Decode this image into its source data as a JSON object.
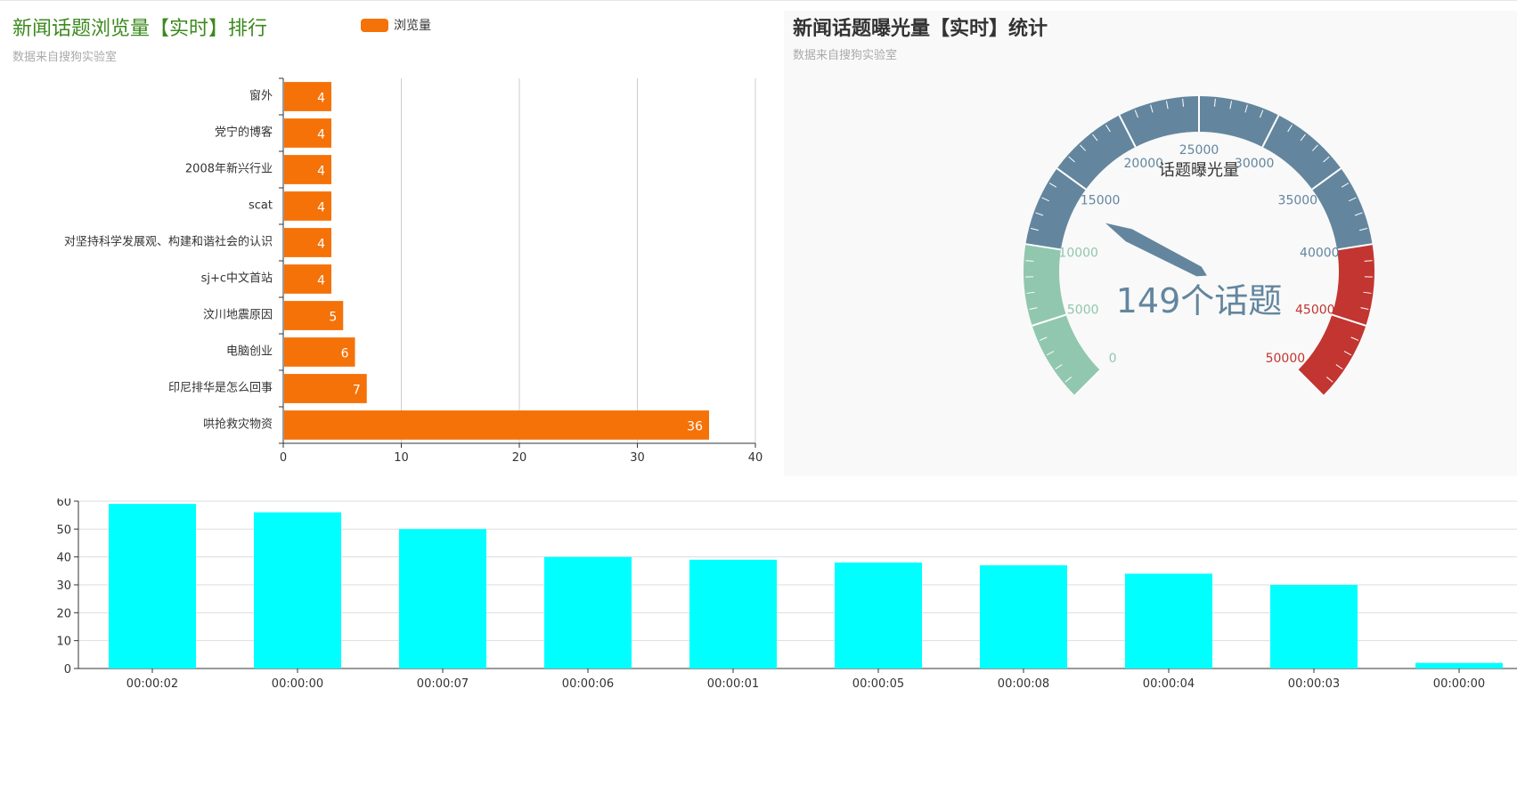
{
  "bar_panel": {
    "title": "新闻话题浏览量【实时】排行",
    "subtitle": "数据来自搜狗实验室",
    "title_color": "#3c8a1e",
    "bar_color": "#f57209"
  },
  "gauge_panel": {
    "title": "新闻话题曝光量【实时】统计",
    "subtitle": "数据来自搜狗实验室",
    "colors": {
      "low": "#91c7ae",
      "mid": "#63869e",
      "high": "#c23531"
    }
  },
  "chart_data": [
    {
      "type": "bar",
      "orientation": "horizontal",
      "legend": [
        "浏览量"
      ],
      "categories": [
        "哄抢救灾物资",
        "印尼排华是怎么回事",
        "电脑创业",
        "汶川地震原因",
        "sj+c中文首站",
        "对坚持科学发展观、构建和谐社会的认识",
        "scat",
        "2008年新兴行业",
        "党宁的博客",
        "窗外"
      ],
      "values": [
        36,
        7,
        6,
        5,
        4,
        4,
        4,
        4,
        4,
        4
      ],
      "xlim": [
        0,
        40
      ],
      "xticks": [
        "0",
        "10",
        "20",
        "30",
        "40"
      ],
      "grid": true
    },
    {
      "type": "gauge",
      "name": "话题曝光量",
      "min": 0,
      "max": 50000,
      "value": 13400,
      "detail": "149个话题",
      "ticks": [
        "0",
        "5000",
        "10000",
        "15000",
        "20000",
        "25000",
        "30000",
        "35000",
        "40000",
        "45000",
        "50000"
      ],
      "bands": [
        {
          "to": 0.2,
          "color": "#91c7ae"
        },
        {
          "to": 0.8,
          "color": "#63869e"
        },
        {
          "to": 1.0,
          "color": "#c23531"
        }
      ]
    },
    {
      "type": "bar",
      "orientation": "vertical",
      "categories": [
        "00:00:02",
        "00:00:00",
        "00:00:07",
        "00:00:06",
        "00:00:01",
        "00:00:05",
        "00:00:08",
        "00:00:04",
        "00:00:03",
        "00:00:00"
      ],
      "values": [
        59,
        56,
        50,
        40,
        39,
        38,
        37,
        34,
        30,
        2
      ],
      "ylim": [
        0,
        60
      ],
      "yticks": [
        "0",
        "10",
        "20",
        "30",
        "40",
        "50",
        "60"
      ],
      "color": "#00ffff",
      "grid": true
    }
  ]
}
